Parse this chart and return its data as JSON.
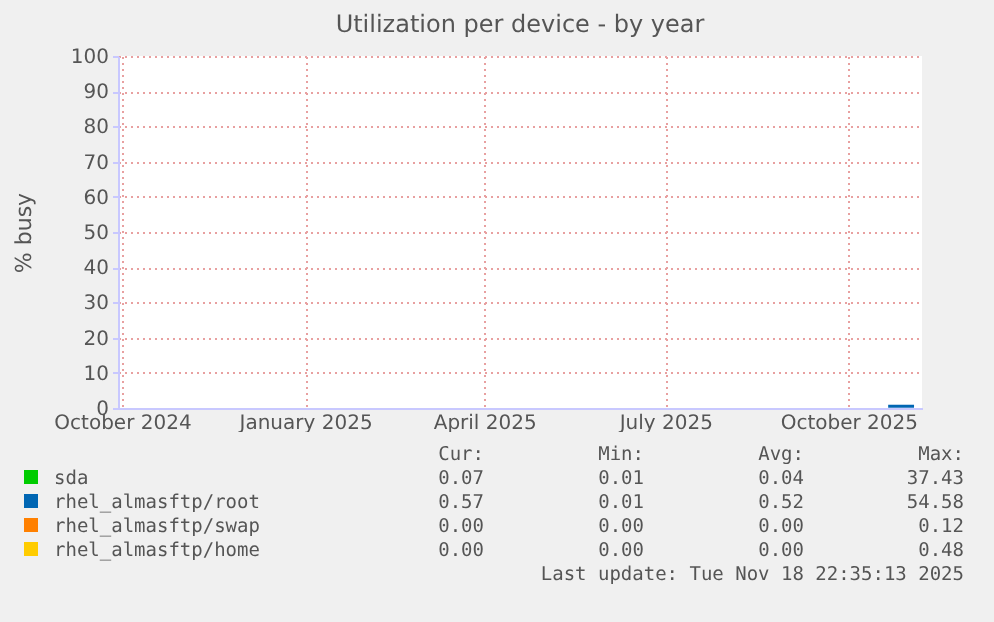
{
  "chart_data": {
    "type": "line",
    "title": "Utilization per device - by year",
    "ylabel": "% busy",
    "x": [
      "2025-11-05",
      "2025-11-18"
    ],
    "series": [
      {
        "name": "sda",
        "color": "#00cc00",
        "values": [
          null,
          null
        ]
      },
      {
        "name": "rhel_almasftp/root",
        "color": "#0066b3",
        "values": [
          0.5,
          0.5
        ]
      },
      {
        "name": "rhel_almasftp/swap",
        "color": "#ff8000",
        "values": [
          null,
          null
        ]
      },
      {
        "name": "rhel_almasftp/home",
        "color": "#ffcc00",
        "values": [
          null,
          null
        ]
      }
    ],
    "xlim": [
      "2024-10-14",
      "2025-11-22"
    ],
    "xticks": [
      {
        "value": "2024-10-16",
        "label": "October 2024"
      },
      {
        "value": "2025-01-16",
        "label": "January 2025"
      },
      {
        "value": "2025-04-16",
        "label": "April 2025"
      },
      {
        "value": "2025-07-16",
        "label": "July 2025"
      },
      {
        "value": "2025-10-16",
        "label": "October 2025"
      }
    ],
    "ylim": [
      0,
      100
    ],
    "yticks": [
      0,
      10,
      20,
      30,
      40,
      50,
      60,
      70,
      80,
      90,
      100
    ],
    "grid": true,
    "legend": "bottom",
    "marker": "none",
    "line_style": "solid",
    "annotations": [
      "Cur:",
      "Min:",
      "Avg:",
      "Max:",
      "0.07",
      "0.01",
      "0.04",
      "37.43",
      "0.57",
      "0.01",
      "0.52",
      "54.58",
      "0.00",
      "0.00",
      "0.00",
      "0.12",
      "0.00",
      "0.00",
      "0.00",
      "0.48",
      "Last update: Tue Nov 18 22:35:13 2025"
    ]
  }
}
